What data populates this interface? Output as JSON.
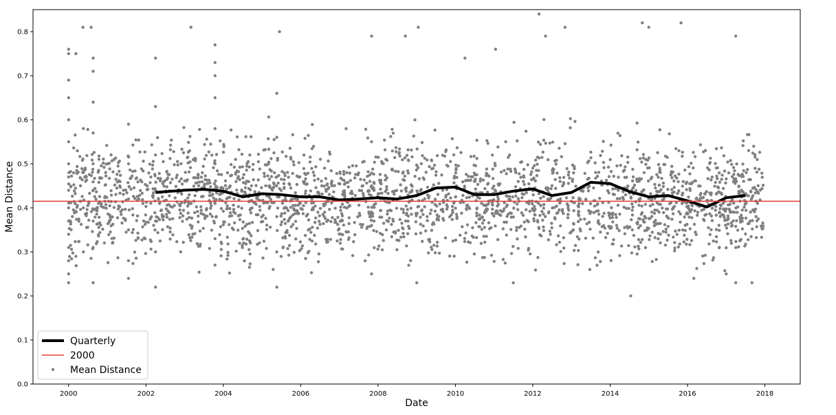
{
  "chart_data": {
    "type": "scatter",
    "title": "",
    "xlabel": "Date",
    "ylabel": "Mean Distance",
    "xlim": [
      "1999-01-30",
      "2018-12-01"
    ],
    "ylim": [
      0.0,
      0.85
    ],
    "x_ticks": [
      "2000",
      "2002",
      "2004",
      "2006",
      "2008",
      "2010",
      "2012",
      "2014",
      "2016",
      "2018"
    ],
    "y_ticks": [
      "0.0",
      "0.1",
      "0.2",
      "0.3",
      "0.4",
      "0.5",
      "0.6",
      "0.7",
      "0.8"
    ],
    "grid": false,
    "legend": {
      "placement": "lower-left",
      "entries": [
        "Quarterly",
        "2000",
        "Mean Distance"
      ]
    },
    "colors": {
      "scatter": "#808080",
      "quarterly": "#000000",
      "baseline": "#e8403a"
    },
    "series": [
      {
        "name": "Mean Distance",
        "kind": "scatter",
        "note_only_summary": "dense cloud of daily points, approx range 0.22-0.84, centered near 0.42",
        "points": [
          [
            "2000-01-01",
            0.76
          ],
          [
            "2000-01-01",
            0.75
          ],
          [
            "2000-01-01",
            0.69
          ],
          [
            "2000-01-01",
            0.65
          ],
          [
            "2000-01-01",
            0.6
          ],
          [
            "2000-01-01",
            0.55
          ],
          [
            "2000-01-01",
            0.5
          ],
          [
            "2000-01-01",
            0.47
          ],
          [
            "2000-01-01",
            0.44
          ],
          [
            "2000-01-01",
            0.4
          ],
          [
            "2000-01-01",
            0.37
          ],
          [
            "2000-01-01",
            0.34
          ],
          [
            "2000-01-01",
            0.31
          ],
          [
            "2000-01-01",
            0.28
          ],
          [
            "2000-01-01",
            0.25
          ],
          [
            "2000-01-01",
            0.23
          ],
          [
            "2000-08-01",
            0.81
          ],
          [
            "2000-05-15",
            0.81
          ],
          [
            "2000-08-20",
            0.74
          ],
          [
            "2000-08-20",
            0.71
          ],
          [
            "2000-08-20",
            0.64
          ],
          [
            "2000-08-20",
            0.57
          ],
          [
            "2000-08-20",
            0.5
          ],
          [
            "2000-08-20",
            0.44
          ],
          [
            "2000-08-20",
            0.37
          ],
          [
            "2000-08-20",
            0.31
          ],
          [
            "2000-08-20",
            0.23
          ],
          [
            "2000-05-20",
            0.58
          ],
          [
            "2000-05-20",
            0.48
          ],
          [
            "2000-05-20",
            0.4
          ],
          [
            "2000-05-20",
            0.3
          ],
          [
            "2000-03-10",
            0.75
          ],
          [
            "2000-03-10",
            0.29
          ],
          [
            "2003-03-01",
            0.81
          ],
          [
            "2005-06-15",
            0.8
          ],
          [
            "2003-10-15",
            0.77
          ],
          [
            "2003-10-15",
            0.73
          ],
          [
            "2003-10-15",
            0.7
          ],
          [
            "2003-10-15",
            0.65
          ],
          [
            "2003-10-15",
            0.58
          ],
          [
            "2003-10-15",
            0.5
          ],
          [
            "2003-10-15",
            0.41
          ],
          [
            "2003-10-15",
            0.33
          ],
          [
            "2003-10-15",
            0.27
          ],
          [
            "2002-04-01",
            0.74
          ],
          [
            "2002-04-01",
            0.63
          ],
          [
            "2002-04-01",
            0.52
          ],
          [
            "2002-04-01",
            0.44
          ],
          [
            "2002-04-01",
            0.37
          ],
          [
            "2002-04-01",
            0.3
          ],
          [
            "2002-04-01",
            0.22
          ],
          [
            "2001-07-20",
            0.59
          ],
          [
            "2001-07-20",
            0.5
          ],
          [
            "2001-07-20",
            0.42
          ],
          [
            "2001-07-20",
            0.35
          ],
          [
            "2001-07-20",
            0.28
          ],
          [
            "2001-07-20",
            0.24
          ],
          [
            "2005-05-20",
            0.66
          ],
          [
            "2005-05-20",
            0.56
          ],
          [
            "2005-05-20",
            0.47
          ],
          [
            "2005-05-20",
            0.38
          ],
          [
            "2005-05-20",
            0.3
          ],
          [
            "2005-05-20",
            0.22
          ],
          [
            "2007-11-01",
            0.79
          ],
          [
            "2007-11-01",
            0.55
          ],
          [
            "2007-11-01",
            0.45
          ],
          [
            "2007-11-01",
            0.36
          ],
          [
            "2007-11-01",
            0.25
          ],
          [
            "2008-09-15",
            0.79
          ],
          [
            "2009-01-15",
            0.81
          ],
          [
            "2010-04-01",
            0.74
          ],
          [
            "2011-01-15",
            0.76
          ],
          [
            "2012-03-01",
            0.84
          ],
          [
            "2012-05-01",
            0.79
          ],
          [
            "2012-11-01",
            0.81
          ],
          [
            "2014-11-01",
            0.82
          ],
          [
            "2015-01-01",
            0.81
          ],
          [
            "2015-11-01",
            0.82
          ],
          [
            "2017-04-01",
            0.79
          ],
          [
            "2014-07-15",
            0.2
          ],
          [
            "2009-01-01",
            0.23
          ],
          [
            "2011-07-01",
            0.23
          ],
          [
            "2016-03-01",
            0.24
          ],
          [
            "2017-01-01",
            0.25
          ],
          [
            "2017-04-01",
            0.23
          ],
          [
            "2017-09-01",
            0.23
          ]
        ]
      },
      {
        "name": "Quarterly",
        "kind": "line",
        "x": [
          "2002-04-01",
          "2003-01-01",
          "2003-07-01",
          "2004-01-01",
          "2004-07-01",
          "2005-01-01",
          "2005-07-01",
          "2006-01-01",
          "2006-07-01",
          "2007-01-01",
          "2007-07-01",
          "2008-01-01",
          "2008-07-01",
          "2009-01-01",
          "2009-07-01",
          "2010-01-01",
          "2010-07-01",
          "2011-01-01",
          "2011-07-01",
          "2012-01-01",
          "2012-07-01",
          "2013-01-01",
          "2013-07-01",
          "2014-01-01",
          "2014-07-01",
          "2015-01-01",
          "2015-07-01",
          "2016-01-01",
          "2016-07-01",
          "2017-01-01",
          "2017-07-01"
        ],
        "values": [
          0.435,
          0.44,
          0.442,
          0.438,
          0.425,
          0.432,
          0.43,
          0.425,
          0.425,
          0.418,
          0.42,
          0.423,
          0.42,
          0.428,
          0.445,
          0.447,
          0.43,
          0.43,
          0.438,
          0.443,
          0.428,
          0.435,
          0.458,
          0.455,
          0.437,
          0.425,
          0.428,
          0.416,
          0.402,
          0.423,
          0.428
        ]
      },
      {
        "name": "2000",
        "kind": "hline",
        "value": 0.415
      }
    ]
  }
}
